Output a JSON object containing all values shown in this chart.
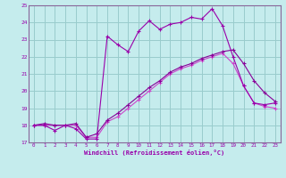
{
  "xlabel": "Windchill (Refroidissement éolien,°C)",
  "xlim": [
    -0.5,
    23.5
  ],
  "ylim": [
    17,
    25
  ],
  "xticks": [
    0,
    1,
    2,
    3,
    4,
    5,
    6,
    7,
    8,
    9,
    10,
    11,
    12,
    13,
    14,
    15,
    16,
    17,
    18,
    19,
    20,
    21,
    22,
    23
  ],
  "yticks": [
    17,
    18,
    19,
    20,
    21,
    22,
    23,
    24,
    25
  ],
  "bg_color": "#c5eced",
  "line_color1": "#9900aa",
  "line_color2": "#cc44cc",
  "line_color3": "#880099",
  "grid_color": "#99cccc",
  "spine_color": "#886699",
  "line1_x": [
    0,
    1,
    2,
    3,
    4,
    5,
    6,
    7,
    8,
    9,
    10,
    11,
    12,
    13,
    14,
    15,
    16,
    17,
    18,
    19,
    20,
    21,
    22,
    23
  ],
  "line1_y": [
    18.0,
    18.0,
    17.7,
    18.0,
    17.8,
    17.2,
    17.2,
    23.2,
    22.7,
    22.3,
    23.5,
    24.1,
    23.6,
    23.9,
    24.0,
    24.3,
    24.2,
    24.8,
    23.8,
    22.0,
    20.3,
    19.3,
    19.2,
    19.3
  ],
  "line2_x": [
    0,
    1,
    2,
    3,
    4,
    5,
    6,
    7,
    8,
    9,
    10,
    11,
    12,
    13,
    14,
    15,
    16,
    17,
    18,
    19,
    20,
    21,
    22,
    23
  ],
  "line2_y": [
    18.0,
    18.0,
    18.0,
    18.0,
    18.0,
    17.3,
    17.3,
    18.2,
    18.5,
    19.0,
    19.5,
    20.0,
    20.5,
    21.0,
    21.3,
    21.5,
    21.8,
    22.0,
    22.2,
    21.6,
    20.3,
    19.3,
    19.1,
    19.0
  ],
  "line3_x": [
    0,
    1,
    2,
    3,
    4,
    5,
    6,
    7,
    8,
    9,
    10,
    11,
    12,
    13,
    14,
    15,
    16,
    17,
    18,
    19,
    20,
    21,
    22,
    23
  ],
  "line3_y": [
    18.0,
    18.1,
    18.0,
    18.0,
    18.1,
    17.3,
    17.5,
    18.3,
    18.7,
    19.2,
    19.7,
    20.2,
    20.6,
    21.1,
    21.4,
    21.6,
    21.9,
    22.1,
    22.3,
    22.4,
    21.6,
    20.6,
    19.9,
    19.4
  ]
}
